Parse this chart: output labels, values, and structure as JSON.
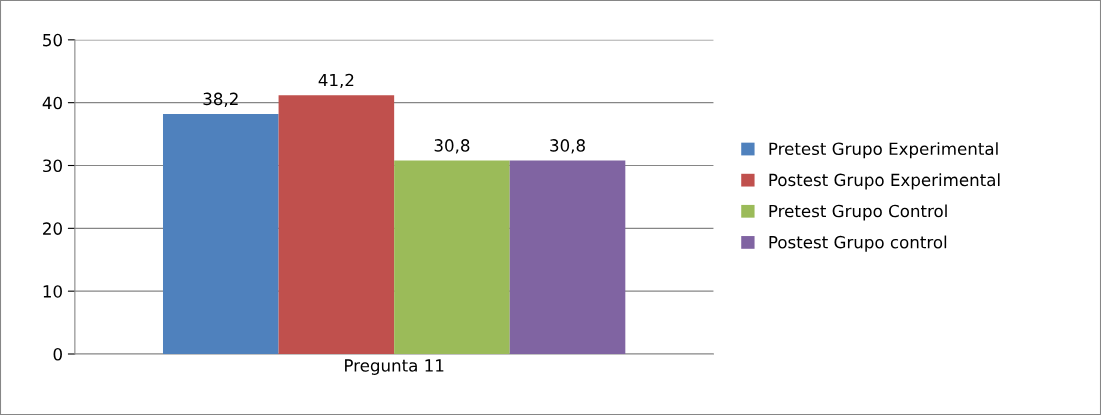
{
  "chart_data": {
    "type": "bar",
    "categories": [
      "Pregunta 11"
    ],
    "series": [
      {
        "name": "Pretest Grupo Experimental",
        "color": "#4f81bd",
        "values": [
          38.2
        ],
        "value_labels": [
          "38,2"
        ]
      },
      {
        "name": "Postest Grupo Experimental",
        "color": "#c0504d",
        "values": [
          41.2
        ],
        "value_labels": [
          "41,2"
        ]
      },
      {
        "name": "Pretest Grupo Control",
        "color": "#9bbb59",
        "values": [
          30.8
        ],
        "value_labels": [
          "30,8"
        ]
      },
      {
        "name": "Postest Grupo control",
        "color": "#8064a2",
        "values": [
          30.8
        ],
        "value_labels": [
          "30,8"
        ]
      }
    ],
    "ylim": [
      0,
      50
    ],
    "yticks": [
      0,
      10,
      20,
      30,
      40,
      50
    ],
    "grid": "y",
    "legend": "right"
  }
}
